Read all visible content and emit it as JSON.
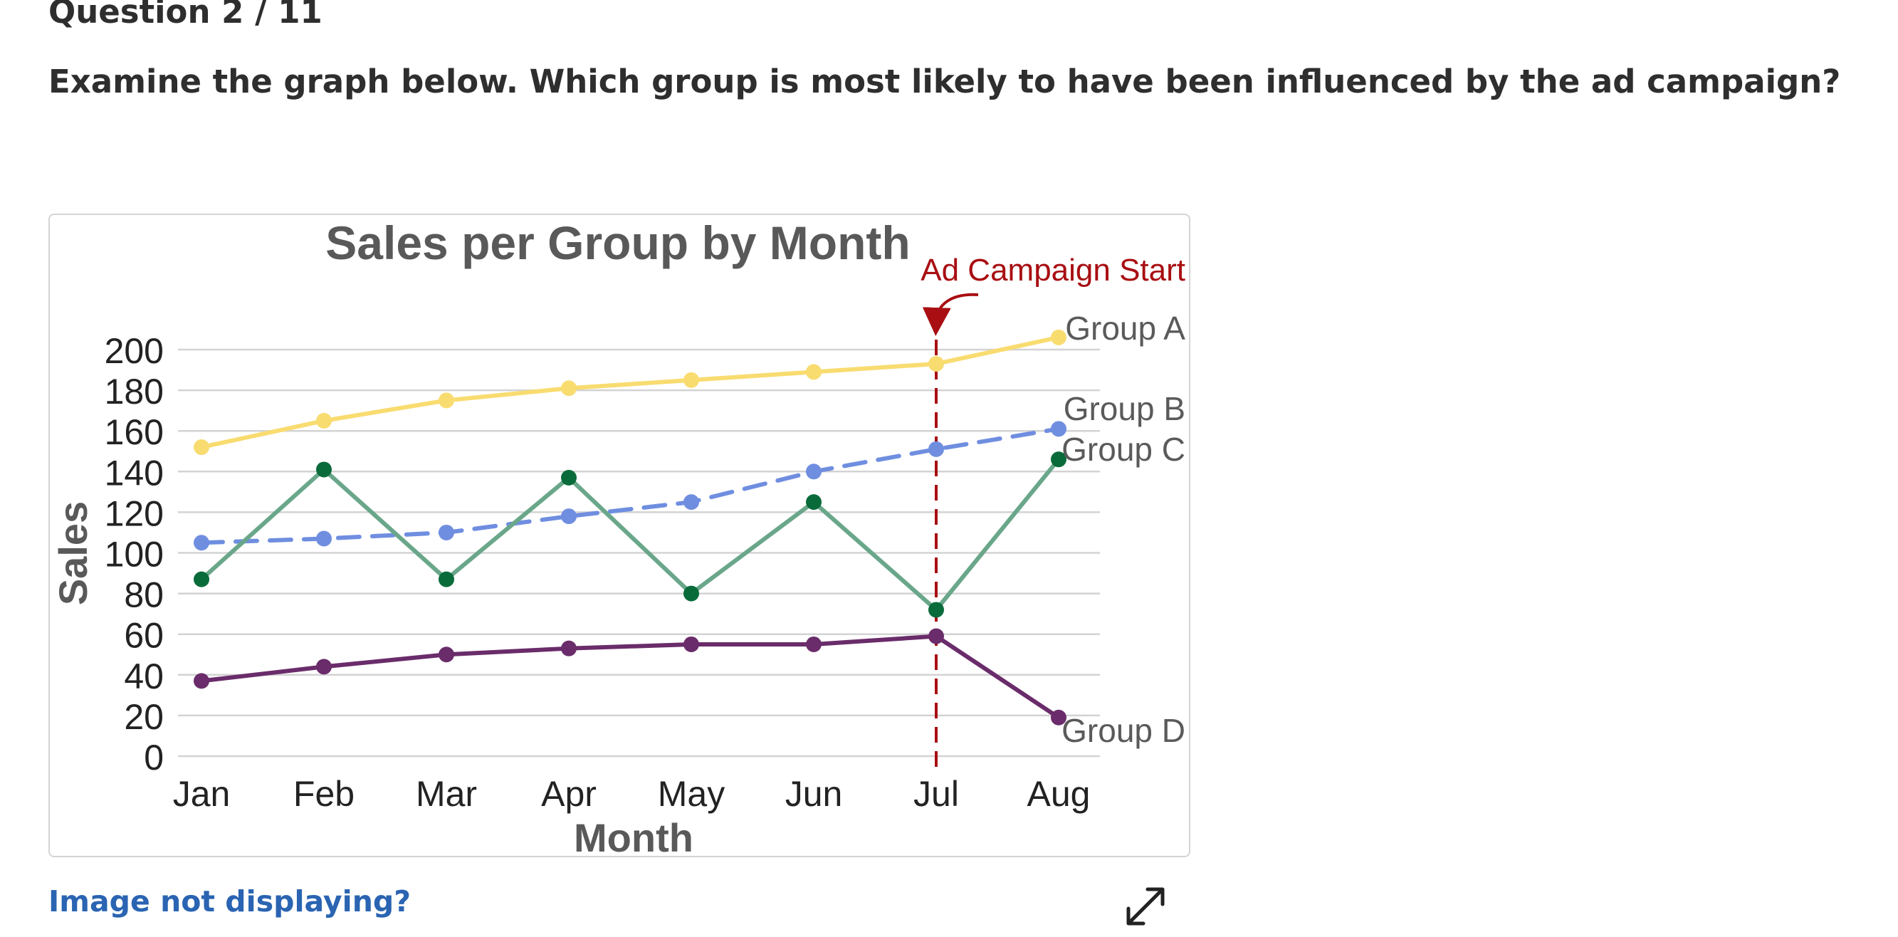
{
  "question": {
    "counter": "Question 2 / 11",
    "prompt": "Examine the graph below. Which group is most likely to have been influenced by the ad campaign?"
  },
  "image_link": "Image not displaying?",
  "icons": {
    "expand": "expand-icon"
  },
  "chart_data": {
    "type": "line",
    "title": "Sales per Group by Month",
    "xlabel": "Month",
    "ylabel": "Sales",
    "categories": [
      "Jan",
      "Feb",
      "Mar",
      "Apr",
      "May",
      "Jun",
      "Jul",
      "Aug"
    ],
    "ylim": [
      0,
      200
    ],
    "yticks": [
      0,
      20,
      40,
      60,
      80,
      100,
      120,
      140,
      160,
      180,
      200
    ],
    "grid": true,
    "series": [
      {
        "name": "Group A",
        "values": [
          152,
          165,
          175,
          181,
          185,
          189,
          193,
          206
        ],
        "color": "#f9dc70",
        "dashed": false
      },
      {
        "name": "Group B",
        "values": [
          105,
          107,
          110,
          118,
          125,
          140,
          151,
          161
        ],
        "color": "#6f8ee0",
        "dashed": true
      },
      {
        "name": "Group C",
        "values": [
          87,
          141,
          87,
          137,
          80,
          125,
          72,
          146
        ],
        "line_color": "#6aa78a",
        "color": "#0a6b3a",
        "dashed": false
      },
      {
        "name": "Group D",
        "values": [
          37,
          44,
          50,
          53,
          55,
          55,
          59,
          19
        ],
        "color": "#6a2c6a",
        "dashed": false
      }
    ],
    "annotation": {
      "text": "Ad Campaign Start",
      "at": "Jul",
      "color": "#a80e12"
    }
  }
}
